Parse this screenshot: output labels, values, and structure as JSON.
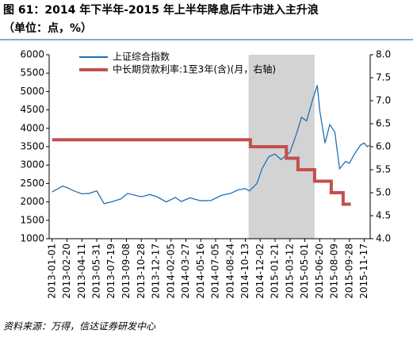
{
  "chart_data": {
    "type": "line",
    "title": "图 61：2014 年下半年-2015 年上半年降息后牛市进入主升浪",
    "subtitle": "（单位：点，%）",
    "source": "资料来源：万得，信达证券研发中心",
    "legend": "upper left",
    "shaded_range": [
      "2014-10-24",
      "2015-06-03"
    ],
    "shade_color": "#d3d3d3",
    "xlim": [
      "2012-12-22",
      "2015-12-07"
    ],
    "xticks": [
      "2013-01-01",
      "2013-02-20",
      "2013-04-11",
      "2013-05-31",
      "2013-07-19",
      "2013-09-08",
      "2013-10-28",
      "2013-12-17",
      "2014-02-05",
      "2014-03-27",
      "2014-05-16",
      "2014-07-05",
      "2014-08-24",
      "2014-10-13",
      "2014-12-02",
      "2015-01-21",
      "2015-03-12",
      "2015-05-01",
      "2015-06-20",
      "2015-08-09",
      "2015-09-28",
      "2015-11-17"
    ],
    "ylim": [
      1000,
      6000
    ],
    "yticks": [
      1000,
      1500,
      2000,
      2500,
      3000,
      3500,
      4000,
      4500,
      5000,
      5500,
      6000
    ],
    "y2lim": [
      4,
      8
    ],
    "y2ticks": [
      {
        "value": 4,
        "label": "4.0"
      },
      4.5,
      {
        "value": 5,
        "label": "5.0"
      },
      5.5,
      {
        "value": 6,
        "label": "6.0"
      },
      6.5,
      {
        "value": 7,
        "label": "7.0"
      },
      7.5,
      {
        "value": 8,
        "label": "8.0"
      }
    ],
    "series": [
      {
        "name": "上证综合指数",
        "color": "#1f6fb5",
        "x": [
          "2013-01-01",
          "2013-02-05",
          "2013-02-20",
          "2013-03-15",
          "2013-04-11",
          "2013-05-05",
          "2013-05-31",
          "2013-06-25",
          "2013-07-19",
          "2013-08-20",
          "2013-09-12",
          "2013-10-28",
          "2013-11-25",
          "2013-12-17",
          "2014-01-20",
          "2014-02-20",
          "2014-03-11",
          "2014-04-10",
          "2014-05-16",
          "2014-06-20",
          "2014-07-25",
          "2014-08-24",
          "2014-09-20",
          "2014-10-13",
          "2014-10-27",
          "2014-11-21",
          "2014-12-08",
          "2014-12-31",
          "2015-01-21",
          "2015-02-10",
          "2015-03-12",
          "2015-04-01",
          "2015-04-20",
          "2015-05-07",
          "2015-05-28",
          "2015-06-12",
          "2015-06-20",
          "2015-07-08",
          "2015-07-24",
          "2015-08-10",
          "2015-08-26",
          "2015-09-15",
          "2015-09-28",
          "2015-10-15",
          "2015-11-05",
          "2015-11-17",
          "2015-11-27",
          "2015-12-04"
        ],
        "values": [
          2270,
          2430,
          2390,
          2300,
          2220,
          2230,
          2300,
          1950,
          2000,
          2080,
          2230,
          2140,
          2200,
          2150,
          2000,
          2120,
          2010,
          2110,
          2030,
          2040,
          2180,
          2230,
          2330,
          2360,
          2300,
          2500,
          2900,
          3230,
          3300,
          3150,
          3350,
          3800,
          4300,
          4200,
          4800,
          5170,
          4500,
          3600,
          4100,
          3900,
          2900,
          3100,
          3050,
          3300,
          3550,
          3600,
          3500,
          3540
        ]
      },
      {
        "name": "中长期贷款利率:1至3年(含)(月，右轴)",
        "color": "#c0504d",
        "axis": "y2",
        "step": true,
        "x": [
          "2013-01-01",
          "2014-10-30",
          "2015-02-28",
          "2015-04-08",
          "2015-06-03",
          "2015-07-29",
          "2015-09-07",
          "2015-10-03"
        ],
        "values": [
          6.15,
          6.0,
          5.75,
          5.5,
          5.25,
          5.0,
          4.75,
          4.75
        ]
      }
    ]
  }
}
